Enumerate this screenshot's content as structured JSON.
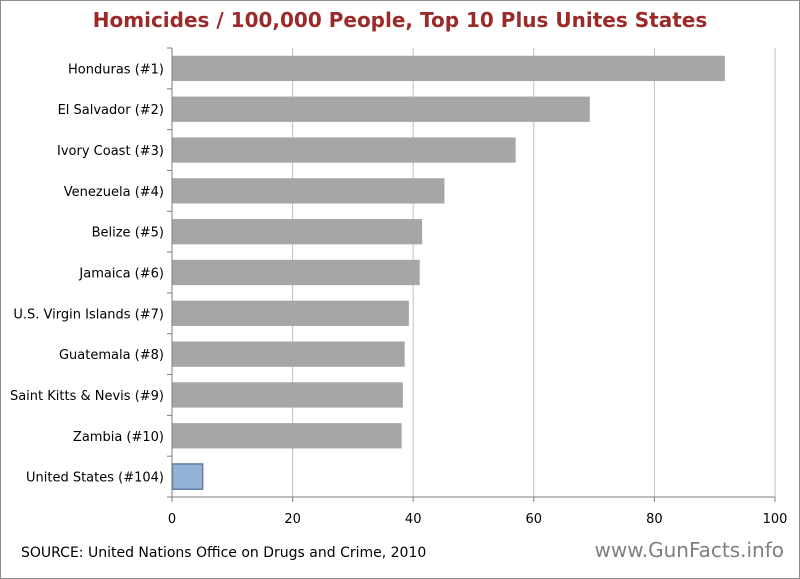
{
  "title": "Homicides / 100,000 People, Top 10 Plus Unites States",
  "source": "SOURCE: United Nations Office on Drugs and Crime, 2010",
  "watermark": "www.GunFacts.info",
  "colors": {
    "title": "#9b2a2a",
    "bar": "#a6a6a6",
    "highlight_bar": "#95b3d7",
    "highlight_border": "#5f7fa6",
    "grid": "#bfbfbf"
  },
  "chart_data": {
    "type": "bar",
    "orientation": "horizontal",
    "title": "Homicides / 100,000 People, Top 10 Plus Unites States",
    "categories": [
      "Honduras (#1)",
      "El Salvador (#2)",
      "Ivory Coast (#3)",
      "Venezuela (#4)",
      "Belize (#5)",
      "Jamaica (#6)",
      "U.S. Virgin Islands (#7)",
      "Guatemala (#8)",
      "Saint Kitts & Nevis (#9)",
      "Zambia (#10)",
      "United States (#104)"
    ],
    "values": [
      91.6,
      69.2,
      56.9,
      45.1,
      41.4,
      41.0,
      39.2,
      38.5,
      38.2,
      38.0,
      5.0
    ],
    "highlight_index": 10,
    "xlim": [
      0,
      100
    ],
    "xticks": [
      0,
      20,
      40,
      60,
      80,
      100
    ],
    "xlabel": "",
    "ylabel": "",
    "grid": "vertical",
    "legend": "none"
  }
}
